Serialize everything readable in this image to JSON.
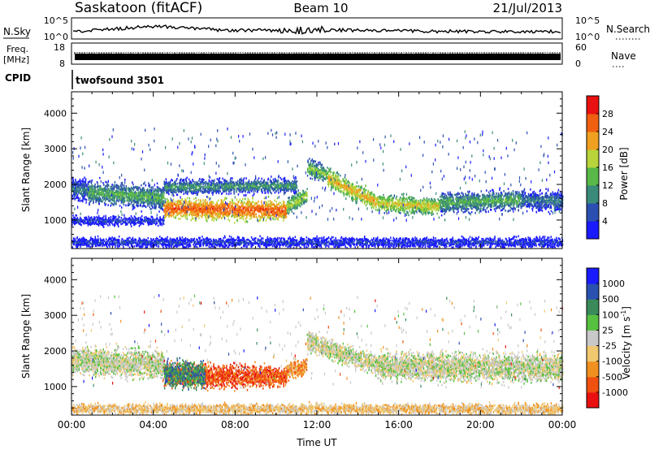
{
  "header": {
    "station": "Saskatoon (fitACF)",
    "beam": "Beam 10",
    "date": "21/Jul/2013"
  },
  "summary": {
    "nsky": {
      "label": "N.Sky",
      "ticks": [
        "10^5",
        "10^0"
      ]
    },
    "nsearch": {
      "label": "N.Search",
      "ticks": [
        "10^5",
        "10^0"
      ]
    },
    "freq": {
      "label_line1": "Freq.",
      "label_line2": "[MHz]",
      "ticks": [
        "18",
        "8"
      ]
    },
    "nave": {
      "label": "Nave",
      "ticks": [
        "60",
        "0"
      ]
    },
    "cpid": {
      "label": "CPID",
      "value": "twofsound 3501"
    }
  },
  "chart_data": [
    {
      "type": "heatmap",
      "name": "power",
      "xlabel": "",
      "ylabel": "Slant Range [km]",
      "xlim": [
        0,
        24
      ],
      "ylim": [
        200,
        4600
      ],
      "yticks": [
        {
          "v": 1000,
          "label": "1000"
        },
        {
          "v": 2000,
          "label": "2000"
        },
        {
          "v": 3000,
          "label": "3000"
        },
        {
          "v": 4000,
          "label": "4000"
        }
      ],
      "colorbar": {
        "label": "Power [dB]",
        "ticks": [
          "4",
          "8",
          "12",
          "16",
          "20",
          "24",
          "28"
        ],
        "colors": [
          "#1a1aff",
          "#2a4fb0",
          "#3a8a7a",
          "#58b848",
          "#b8d43a",
          "#f0a020",
          "#f06010",
          "#e81010"
        ]
      },
      "bands": [
        {
          "t0": 0.0,
          "t1": 0.8,
          "c0": 1900,
          "c1": 1850,
          "w": 450,
          "v": 10
        },
        {
          "t0": 0.8,
          "t1": 4.5,
          "c0": 1800,
          "c1": 1650,
          "w": 450,
          "v": 14
        },
        {
          "t0": 4.5,
          "t1": 10.5,
          "c0": 1350,
          "c1": 1300,
          "w": 400,
          "v": 27
        },
        {
          "t0": 10.5,
          "t1": 11.5,
          "c0": 1400,
          "c1": 1700,
          "w": 350,
          "v": 18
        },
        {
          "t0": 11.5,
          "t1": 12.5,
          "c0": 2500,
          "c1": 2300,
          "w": 350,
          "v": 16
        },
        {
          "t0": 12.5,
          "t1": 15.0,
          "c0": 2200,
          "c1": 1500,
          "w": 350,
          "v": 22
        },
        {
          "t0": 15.0,
          "t1": 18.0,
          "c0": 1500,
          "c1": 1400,
          "w": 350,
          "v": 20
        },
        {
          "t0": 18.0,
          "t1": 22.0,
          "c0": 1500,
          "c1": 1600,
          "w": 400,
          "v": 14
        },
        {
          "t0": 22.0,
          "t1": 24.0,
          "c0": 1600,
          "c1": 1550,
          "w": 400,
          "v": 10
        },
        {
          "t0": 0.0,
          "t1": 4.5,
          "c0": 1000,
          "c1": 1000,
          "w": 180,
          "v": 6
        },
        {
          "t0": 4.5,
          "t1": 11.0,
          "c0": 1950,
          "c1": 2000,
          "w": 300,
          "v": 12
        },
        {
          "t0": 0.0,
          "t1": 24.0,
          "c0": 400,
          "c1": 400,
          "w": 200,
          "v": 6
        }
      ]
    },
    {
      "type": "heatmap",
      "name": "velocity",
      "xlabel": "Time UT",
      "ylabel": "Slant Range [km]",
      "xlim": [
        0,
        24
      ],
      "ylim": [
        200,
        4600
      ],
      "xticks": [
        "00:00",
        "04:00",
        "08:00",
        "12:00",
        "16:00",
        "20:00",
        "00:00"
      ],
      "yticks": [
        {
          "v": 1000,
          "label": "1000"
        },
        {
          "v": 2000,
          "label": "2000"
        },
        {
          "v": 3000,
          "label": "3000"
        },
        {
          "v": 4000,
          "label": "4000"
        }
      ],
      "colorbar": {
        "label": "Velocity [m s",
        "label_sup": "-1",
        "label_end": "]",
        "ticks": [
          "-1000",
          "-500",
          "-100",
          "-25",
          "25",
          "100",
          "500",
          "1000"
        ],
        "colors": [
          "#e81010",
          "#f05010",
          "#f09020",
          "#f0c870",
          "#c8c8c8",
          "#58c040",
          "#3a8a5a",
          "#2a50b0",
          "#1a1aff"
        ]
      },
      "bands": [
        {
          "t0": 0.0,
          "t1": 4.5,
          "c0": 1750,
          "c1": 1650,
          "w": 550,
          "v": 4
        },
        {
          "t0": 4.5,
          "t1": 10.5,
          "c0": 1350,
          "c1": 1300,
          "w": 450,
          "v": 1
        },
        {
          "t0": 10.5,
          "t1": 11.5,
          "c0": 1450,
          "c1": 1600,
          "w": 350,
          "v": 2
        },
        {
          "t0": 11.5,
          "t1": 15.0,
          "c0": 2300,
          "c1": 1600,
          "w": 400,
          "v": 4
        },
        {
          "t0": 15.0,
          "t1": 24.0,
          "c0": 1600,
          "c1": 1550,
          "w": 550,
          "v": 4
        },
        {
          "t0": 4.5,
          "t1": 6.5,
          "c0": 1400,
          "c1": 1350,
          "w": 500,
          "v": 6
        },
        {
          "t0": 0.0,
          "t1": 24.0,
          "c0": 400,
          "c1": 400,
          "w": 200,
          "v": 3
        }
      ]
    }
  ]
}
